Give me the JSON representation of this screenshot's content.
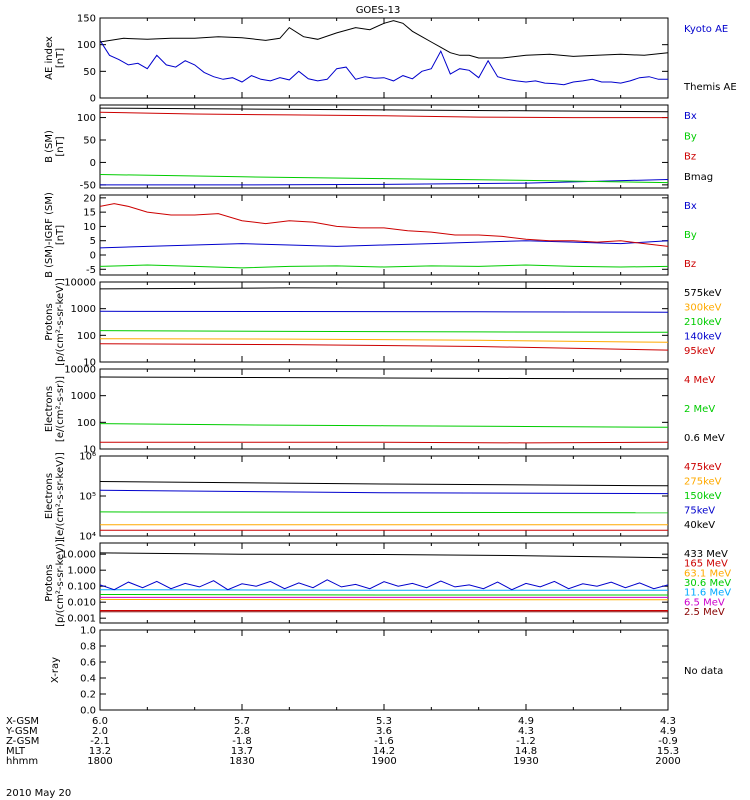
{
  "title": "GOES-13",
  "date_label": "2010 May 20",
  "orbit_table": {
    "row_labels": [
      "X-GSM",
      "Y-GSM",
      "Z-GSM",
      "MLT",
      "hhmm"
    ],
    "columns": [
      {
        "values": [
          "6.0",
          "2.0",
          "-2.1",
          "13.2",
          "1800"
        ]
      },
      {
        "values": [
          "5.7",
          "2.8",
          "-1.8",
          "13.7",
          "1830"
        ]
      },
      {
        "values": [
          "5.3",
          "3.6",
          "-1.6",
          "14.2",
          "1900"
        ]
      },
      {
        "values": [
          "4.9",
          "4.3",
          "-1.2",
          "14.8",
          "1930"
        ]
      },
      {
        "values": [
          "4.3",
          "4.9",
          "-0.9",
          "15.3",
          "2000"
        ]
      }
    ]
  },
  "chart_data": [
    {
      "type": "line",
      "id": "ae",
      "ylabel": [
        "AE index",
        "[nT]"
      ],
      "scale": "linear",
      "ylim": [
        0,
        150
      ],
      "ticks": [
        {
          "v": 0,
          "label": "0"
        },
        {
          "v": 50,
          "label": "50"
        },
        {
          "v": 100,
          "label": "100"
        },
        {
          "v": 150,
          "label": "150"
        }
      ],
      "series": [
        {
          "name": "Kyoto AE",
          "color": "#0000cc",
          "x": [
            0,
            2,
            4,
            6,
            8,
            10,
            12,
            14,
            16,
            18,
            20,
            22,
            24,
            26,
            28,
            30,
            32,
            34,
            36,
            38,
            40,
            42,
            44,
            46,
            48,
            50,
            52,
            54,
            56,
            58,
            60,
            62,
            64,
            66,
            68,
            70,
            72,
            74,
            76,
            78,
            80,
            82,
            84,
            86,
            88,
            90,
            92,
            94,
            96,
            98,
            100,
            102,
            104,
            106,
            108,
            110,
            112,
            114,
            116,
            118,
            120
          ],
          "y": [
            108,
            80,
            72,
            62,
            65,
            55,
            80,
            62,
            58,
            70,
            62,
            48,
            40,
            35,
            38,
            30,
            42,
            35,
            32,
            38,
            34,
            50,
            36,
            32,
            35,
            55,
            58,
            35,
            40,
            37,
            38,
            32,
            42,
            36,
            50,
            55,
            88,
            45,
            55,
            52,
            38,
            70,
            40,
            35,
            32,
            30,
            32,
            28,
            27,
            25,
            30,
            32,
            35,
            30,
            30,
            28,
            32,
            38,
            40,
            35,
            35
          ]
        },
        {
          "name": "Themis AE",
          "color": "#000000",
          "x": [
            0,
            5,
            10,
            15,
            20,
            25,
            30,
            35,
            38,
            40,
            43,
            46,
            50,
            54,
            57,
            60,
            62,
            64,
            66,
            68,
            70,
            72,
            74,
            76,
            78,
            80,
            85,
            90,
            95,
            100,
            105,
            110,
            115,
            120
          ],
          "y": [
            105,
            112,
            110,
            112,
            112,
            115,
            113,
            108,
            112,
            132,
            115,
            110,
            122,
            132,
            128,
            140,
            145,
            140,
            125,
            115,
            105,
            95,
            85,
            80,
            80,
            75,
            75,
            80,
            82,
            78,
            80,
            82,
            80,
            85
          ]
        }
      ]
    },
    {
      "type": "line",
      "id": "b",
      "ylabel": [
        "B (SM)",
        "[nT]"
      ],
      "scale": "linear",
      "ylim": [
        -57,
        128
      ],
      "ticks": [
        {
          "v": -50,
          "label": "-50"
        },
        {
          "v": 0,
          "label": "0"
        },
        {
          "v": 50,
          "label": "50"
        },
        {
          "v": 100,
          "label": "100"
        }
      ],
      "series": [
        {
          "name": "Bx",
          "color": "#0000cc",
          "x": [
            0,
            30,
            60,
            90,
            120
          ],
          "y": [
            -50,
            -50,
            -49,
            -46,
            -38
          ]
        },
        {
          "name": "By",
          "color": "#00cc00",
          "x": [
            0,
            30,
            60,
            90,
            120
          ],
          "y": [
            -27,
            -32,
            -36,
            -40,
            -45
          ]
        },
        {
          "name": "Bz",
          "color": "#cc0000",
          "x": [
            0,
            20,
            40,
            60,
            80,
            100,
            120
          ],
          "y": [
            112,
            108,
            106,
            104,
            101,
            100,
            100
          ]
        },
        {
          "name": "Bmag",
          "color": "#000000",
          "x": [
            0,
            30,
            60,
            90,
            120
          ],
          "y": [
            121,
            119,
            117,
            115,
            113
          ]
        }
      ]
    },
    {
      "type": "line",
      "id": "db",
      "ylabel": [
        "B (SM)-IGRF (SM)",
        "[nT]"
      ],
      "scale": "linear",
      "ylim": [
        -7,
        21
      ],
      "ticks": [
        {
          "v": -5,
          "label": "-5"
        },
        {
          "v": 0,
          "label": "0"
        },
        {
          "v": 5,
          "label": "5"
        },
        {
          "v": 10,
          "label": "10"
        },
        {
          "v": 15,
          "label": "15"
        },
        {
          "v": 20,
          "label": "20"
        }
      ],
      "series": [
        {
          "name": "Bx",
          "color": "#0000cc",
          "x": [
            0,
            10,
            20,
            30,
            40,
            50,
            60,
            70,
            80,
            90,
            100,
            110,
            120
          ],
          "y": [
            2.5,
            3,
            3.5,
            4,
            3.5,
            3,
            3.5,
            4,
            4.5,
            5,
            4.5,
            4,
            5
          ]
        },
        {
          "name": "By",
          "color": "#00cc00",
          "x": [
            0,
            10,
            20,
            30,
            40,
            50,
            60,
            70,
            80,
            90,
            100,
            110,
            120
          ],
          "y": [
            -4,
            -3.5,
            -4,
            -4.5,
            -4,
            -3.8,
            -4.2,
            -3.8,
            -4,
            -3.5,
            -4,
            -4.2,
            -4
          ]
        },
        {
          "name": "Bz",
          "color": "#cc0000",
          "x": [
            0,
            3,
            6,
            10,
            15,
            20,
            25,
            30,
            35,
            40,
            45,
            50,
            55,
            60,
            65,
            70,
            75,
            80,
            85,
            90,
            95,
            100,
            105,
            110,
            115,
            120
          ],
          "y": [
            17,
            18,
            17,
            15,
            14,
            14,
            14.5,
            12,
            11,
            12,
            11.5,
            10,
            9.5,
            9.5,
            8.5,
            8,
            7,
            7,
            6.5,
            5.5,
            5,
            5,
            4.5,
            5,
            4,
            3
          ]
        }
      ]
    },
    {
      "type": "line",
      "id": "protons1",
      "ylabel": [
        "Protons",
        "[p/(cm²-s-sr-keV)]"
      ],
      "scale": "log",
      "ylim": [
        10,
        10000
      ],
      "ticks": [
        {
          "v": 10,
          "label": "10"
        },
        {
          "v": 100,
          "label": "100"
        },
        {
          "v": 1000,
          "label": "1000"
        },
        {
          "v": 10000,
          "label": "10000"
        }
      ],
      "series": [
        {
          "name": "575keV",
          "color": "#000000",
          "x": [
            0,
            40,
            80,
            120
          ],
          "y": [
            5500,
            6000,
            5800,
            5500
          ]
        },
        {
          "name": "300keV",
          "color": "#ffaa00",
          "x": [
            0,
            40,
            80,
            120
          ],
          "y": [
            75,
            72,
            65,
            55
          ]
        },
        {
          "name": "210keV",
          "color": "#00cc00",
          "x": [
            0,
            40,
            80,
            120
          ],
          "y": [
            150,
            140,
            135,
            130
          ]
        },
        {
          "name": "140keV",
          "color": "#0000cc",
          "x": [
            0,
            40,
            80,
            120
          ],
          "y": [
            800,
            780,
            760,
            740
          ]
        },
        {
          "name": "95keV",
          "color": "#cc0000",
          "x": [
            0,
            40,
            80,
            120
          ],
          "y": [
            48,
            45,
            38,
            28
          ]
        }
      ]
    },
    {
      "type": "line",
      "id": "electrons1",
      "ylabel": [
        "Electrons",
        "[e/(cm²-s-sr)]"
      ],
      "scale": "log",
      "ylim": [
        10,
        10000
      ],
      "ticks": [
        {
          "v": 10,
          "label": "10"
        },
        {
          "v": 100,
          "label": "100"
        },
        {
          "v": 1000,
          "label": "1000"
        },
        {
          "v": 10000,
          "label": "10000"
        }
      ],
      "series": [
        {
          "name": "4 MeV",
          "color": "#cc0000",
          "x": [
            0,
            30,
            60,
            90,
            120
          ],
          "y": [
            18,
            18,
            18,
            17,
            18
          ]
        },
        {
          "name": "2 MeV",
          "color": "#00cc00",
          "x": [
            0,
            30,
            60,
            90,
            120
          ],
          "y": [
            90,
            80,
            75,
            70,
            65
          ]
        },
        {
          "name": "0.6 MeV",
          "color": "#000000",
          "x": [
            0,
            30,
            60,
            90,
            120
          ],
          "y": [
            5000,
            4800,
            4600,
            4400,
            4300
          ]
        }
      ]
    },
    {
      "type": "line",
      "id": "electrons2",
      "ylabel": [
        "Electrons",
        "[e/(cm²-s-sr-keV)]"
      ],
      "scale": "log",
      "ylim": [
        10000,
        1000000
      ],
      "ticks": [
        {
          "v": 10000,
          "label": "10⁴"
        },
        {
          "v": 100000,
          "label": "10⁵"
        },
        {
          "v": 1000000,
          "label": "10⁶"
        }
      ],
      "series": [
        {
          "name": "475keV",
          "color": "#cc0000",
          "x": [
            0,
            120
          ],
          "y": [
            14000,
            14000
          ]
        },
        {
          "name": "275keV",
          "color": "#ffaa00",
          "x": [
            0,
            120
          ],
          "y": [
            19000,
            19000
          ]
        },
        {
          "name": "150keV",
          "color": "#00cc00",
          "x": [
            0,
            120
          ],
          "y": [
            40000,
            38000
          ]
        },
        {
          "name": "75keV",
          "color": "#0000cc",
          "x": [
            0,
            60,
            120
          ],
          "y": [
            140000,
            120000,
            115000
          ]
        },
        {
          "name": "40keV",
          "color": "#000000",
          "x": [
            0,
            60,
            120
          ],
          "y": [
            230000,
            200000,
            180000
          ]
        }
      ]
    },
    {
      "type": "line",
      "id": "protons2",
      "ylabel": [
        "Protons",
        "[p/(cm²-s-sr-keV)]"
      ],
      "scale": "log",
      "ylim": [
        0.0005,
        50
      ],
      "ticks": [
        {
          "v": 0.001,
          "label": "0.001"
        },
        {
          "v": 0.01,
          "label": "0.010"
        },
        {
          "v": 0.1,
          "label": "0.100"
        },
        {
          "v": 1,
          "label": "1.000"
        },
        {
          "v": 10,
          "label": "10.000"
        }
      ],
      "series": [
        {
          "name": "433 MeV",
          "color": "#000000",
          "x": [
            0,
            30,
            60,
            90,
            120
          ],
          "y": [
            12,
            10,
            9.5,
            8,
            6
          ]
        },
        {
          "name": "165 MeV",
          "color": "#cc0000",
          "x": [
            0,
            60,
            120
          ],
          "y": [
            0.003,
            0.003,
            0.003
          ]
        },
        {
          "name": "63.1 MeV",
          "color": "#ffaa00",
          "x": [
            0,
            60,
            120
          ],
          "y": [
            0.015,
            0.014,
            0.014
          ]
        },
        {
          "name": "30.6 MeV",
          "color": "#00cc00",
          "x": [
            0,
            60,
            120
          ],
          "y": [
            0.03,
            0.028,
            0.028
          ]
        },
        {
          "name": "11.6 MeV",
          "color": "#00aaff",
          "x": [
            0,
            60,
            120
          ],
          "y": [
            0.06,
            0.055,
            0.055
          ]
        },
        {
          "name": "6.5 MeV",
          "color": "#cc00cc",
          "x": [
            0,
            60,
            120
          ],
          "y": [
            0.02,
            0.02,
            0.02
          ]
        },
        {
          "name": "2.5 MeV",
          "color": "#880000",
          "x": [
            0,
            60,
            120
          ],
          "y": [
            0.0025,
            0.0025,
            0.0025
          ]
        },
        {
          "name": "",
          "color": "#0000cc",
          "x": [
            0,
            3,
            6,
            9,
            12,
            15,
            18,
            21,
            24,
            27,
            30,
            33,
            36,
            39,
            42,
            45,
            48,
            51,
            54,
            57,
            60,
            63,
            66,
            69,
            72,
            75,
            78,
            81,
            84,
            87,
            90,
            93,
            96,
            99,
            102,
            105,
            108,
            111,
            114,
            117,
            120
          ],
          "y": [
            0.12,
            0.06,
            0.18,
            0.08,
            0.2,
            0.07,
            0.15,
            0.09,
            0.22,
            0.06,
            0.14,
            0.1,
            0.2,
            0.07,
            0.16,
            0.08,
            0.25,
            0.09,
            0.13,
            0.07,
            0.19,
            0.1,
            0.15,
            0.08,
            0.21,
            0.09,
            0.12,
            0.07,
            0.18,
            0.06,
            0.15,
            0.09,
            0.2,
            0.07,
            0.14,
            0.1,
            0.18,
            0.08,
            0.16,
            0.07,
            0.12
          ]
        }
      ]
    },
    {
      "type": "line",
      "id": "xray",
      "ylabel": [
        "X-ray"
      ],
      "scale": "linear",
      "ylim": [
        0,
        1
      ],
      "ticks": [
        {
          "v": 0,
          "label": "0.0"
        },
        {
          "v": 0.2,
          "label": "0.2"
        },
        {
          "v": 0.4,
          "label": "0.4"
        },
        {
          "v": 0.6,
          "label": "0.6"
        },
        {
          "v": 0.8,
          "label": "0.8"
        },
        {
          "v": 1,
          "label": "1.0"
        }
      ],
      "note": "No data",
      "series": []
    }
  ]
}
